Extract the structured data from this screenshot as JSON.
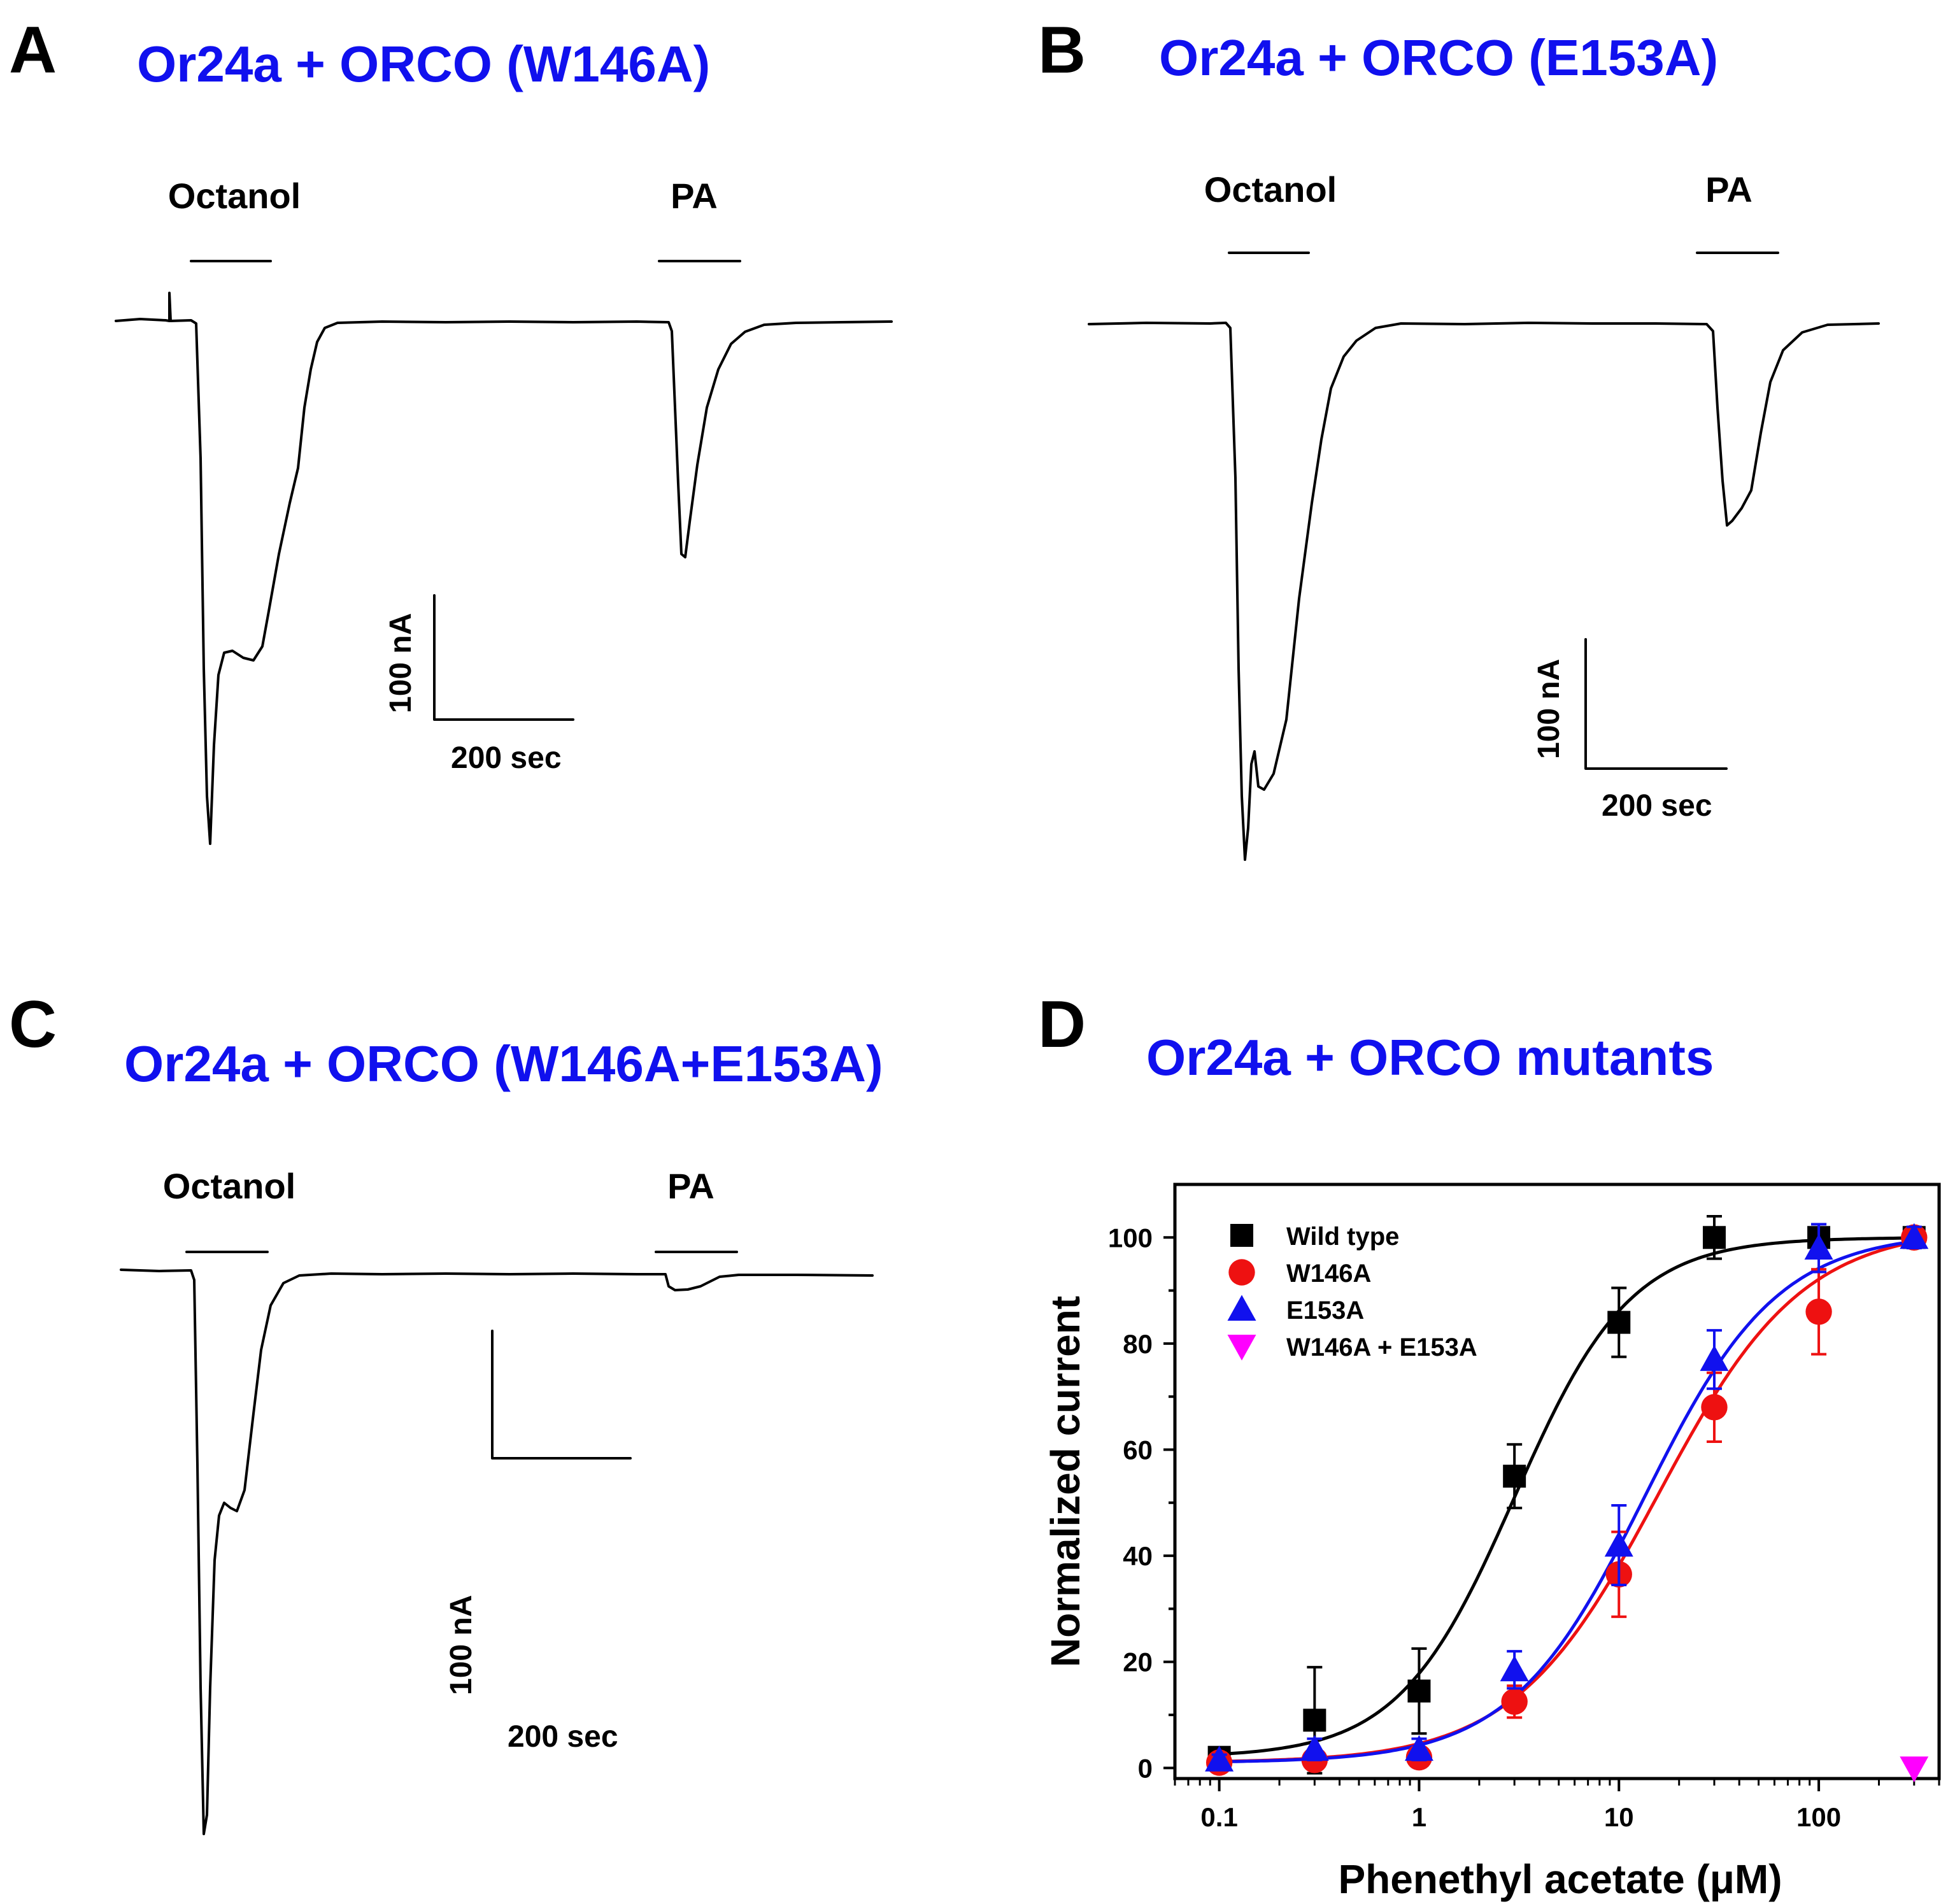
{
  "panels": {
    "a": {
      "letter": "A",
      "title": "Or24a + ORCO (W146A)",
      "stim1": "Octanol",
      "stim2": "PA",
      "scale_y": "100 nA",
      "scale_x": "200 sec"
    },
    "b": {
      "letter": "B",
      "title": "Or24a + ORCO (E153A)",
      "stim1": "Octanol",
      "stim2": "PA",
      "scale_y": "100 nA",
      "scale_x": "200 sec"
    },
    "c": {
      "letter": "C",
      "title": "Or24a + ORCO (W146A+E153A)",
      "stim1": "Octanol",
      "stim2": "PA",
      "scale_y": "100 nA",
      "scale_x": "200 sec"
    },
    "d": {
      "letter": "D",
      "title": "Or24a + ORCO mutants"
    }
  },
  "colors": {
    "title": "#1010ee",
    "wild_type": "#000000",
    "w146a": "#ee1111",
    "e153a": "#1111ee",
    "double": "#ff00ff"
  },
  "chart_data": {
    "type": "scatter",
    "title": "Or24a + ORCO mutants",
    "xlabel": "Phenethyl acetate (μM)",
    "ylabel": "Normalized current",
    "xscale": "log",
    "xlim": [
      0.06,
      400
    ],
    "ylim": [
      -2,
      110
    ],
    "x_ticks": [
      0.1,
      1,
      10,
      100
    ],
    "x_tick_labels": [
      "0.1",
      "1",
      "10",
      "100"
    ],
    "y_ticks": [
      0,
      20,
      40,
      60,
      80,
      100
    ],
    "y_tick_labels": [
      "0",
      "20",
      "40",
      "60",
      "80",
      "100"
    ],
    "legend_position": "top-left",
    "series": [
      {
        "name": "Wild type",
        "marker": "square",
        "color": "#000000",
        "x": [
          0.1,
          0.3,
          1,
          3,
          10,
          30,
          100,
          300
        ],
        "y": [
          2,
          9,
          14.5,
          55,
          84,
          100,
          100,
          100
        ],
        "err": [
          1.5,
          10,
          8,
          6,
          6.5,
          4,
          2.5,
          1.5
        ],
        "fit": {
          "ec50": 3,
          "hill": 1.5,
          "bottom": 2,
          "top": 100
        }
      },
      {
        "name": "W146A",
        "marker": "circle",
        "color": "#ee1111",
        "x": [
          0.1,
          0.3,
          1,
          3,
          10,
          30,
          100,
          300
        ],
        "y": [
          1,
          1.5,
          2,
          12.5,
          36.5,
          68,
          86,
          100
        ],
        "err": [
          1,
          1.5,
          1.5,
          3,
          8,
          6.5,
          8,
          1.5
        ],
        "fit": {
          "ec50": 15.7,
          "hill": 1.2,
          "bottom": 1,
          "top": 102
        }
      },
      {
        "name": "E153A",
        "marker": "triangle-up",
        "color": "#1111ee",
        "x": [
          0.1,
          0.3,
          1,
          3,
          10,
          30,
          100,
          300
        ],
        "y": [
          1.5,
          3.5,
          3.5,
          18.5,
          42,
          77,
          98,
          100
        ],
        "err": [
          1,
          2,
          2,
          3.5,
          7.5,
          5.5,
          4.5,
          2
        ],
        "fit": {
          "ec50": 13.4,
          "hill": 1.3,
          "bottom": 1,
          "top": 101
        }
      },
      {
        "name": "W146A + E153A",
        "marker": "triangle-down",
        "color": "#ff00ff",
        "x": [
          300
        ],
        "y": [
          0
        ],
        "err": [
          0
        ]
      }
    ]
  }
}
